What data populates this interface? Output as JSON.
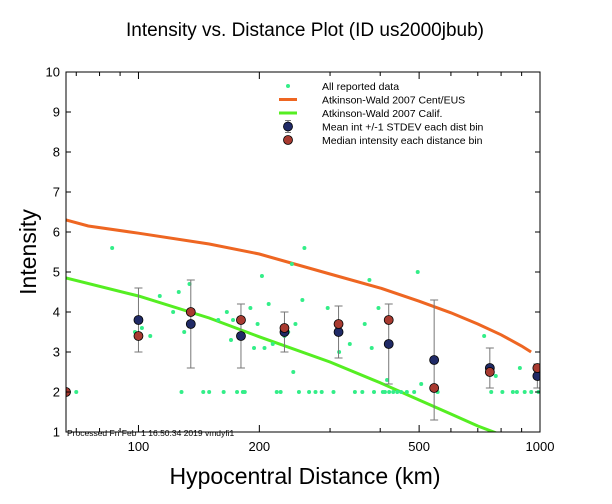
{
  "chart_data": {
    "type": "scatter",
    "title": "Intensity vs. Distance Plot (ID us2000jbub)",
    "xlabel": "Hypocentral Distance (km)",
    "ylabel": "Intensity",
    "x_scale": "log",
    "xlim": [
      66,
      1000
    ],
    "ylim": [
      1,
      10
    ],
    "x_ticks": [
      {
        "value": 100,
        "label": "100"
      },
      {
        "value": 200,
        "label": "200"
      },
      {
        "value": 500,
        "label": "500"
      },
      {
        "value": 1000,
        "label": "1000"
      }
    ],
    "y_ticks": [
      1,
      2,
      3,
      4,
      5,
      6,
      7,
      8,
      9,
      10
    ],
    "legend_position": "top-right",
    "footer": "Processed Fri Feb  1 16:50:34 2019 vmdyfi1",
    "colors": {
      "reported": "#33ee88",
      "cent_eus": "#ee6622",
      "calif": "#55ee22",
      "mean": "#202a66",
      "median": "#a83a30"
    },
    "series": [
      {
        "name": "All reported data",
        "kind": "points",
        "points": [
          [
            66,
            2
          ],
          [
            70,
            2
          ],
          [
            86,
            5.6
          ],
          [
            98,
            3.5
          ],
          [
            102,
            3.6
          ],
          [
            107,
            3.4
          ],
          [
            113,
            4.4
          ],
          [
            122,
            4.0
          ],
          [
            126,
            4.5
          ],
          [
            128,
            2
          ],
          [
            130,
            3.5
          ],
          [
            134,
            4.7
          ],
          [
            145,
            2
          ],
          [
            150,
            2
          ],
          [
            158,
            3.8
          ],
          [
            163,
            2
          ],
          [
            166,
            4.0
          ],
          [
            170,
            3.3
          ],
          [
            172,
            3.8
          ],
          [
            176,
            2
          ],
          [
            182,
            2
          ],
          [
            184,
            2
          ],
          [
            190,
            4.1
          ],
          [
            194,
            3.1
          ],
          [
            198,
            3.7
          ],
          [
            203,
            4.9
          ],
          [
            206,
            3.1
          ],
          [
            211,
            4.2
          ],
          [
            216,
            3.2
          ],
          [
            221,
            2
          ],
          [
            226,
            2
          ],
          [
            231,
            3.4
          ],
          [
            236,
            3.5
          ],
          [
            241,
            5.2
          ],
          [
            243,
            2.5
          ],
          [
            246,
            3.7
          ],
          [
            251,
            2
          ],
          [
            256,
            4.3
          ],
          [
            259,
            5.6
          ],
          [
            266,
            2
          ],
          [
            276,
            2
          ],
          [
            286,
            2
          ],
          [
            296,
            4.1
          ],
          [
            306,
            2
          ],
          [
            316,
            3.0
          ],
          [
            336,
            3.2
          ],
          [
            346,
            2
          ],
          [
            361,
            2
          ],
          [
            366,
            3.7
          ],
          [
            376,
            4.8
          ],
          [
            381,
            3.1
          ],
          [
            386,
            2
          ],
          [
            396,
            4.1
          ],
          [
            406,
            2
          ],
          [
            411,
            2
          ],
          [
            416,
            2.3
          ],
          [
            421,
            2
          ],
          [
            431,
            2
          ],
          [
            441,
            2
          ],
          [
            451,
            2
          ],
          [
            466,
            2
          ],
          [
            486,
            2
          ],
          [
            496,
            5.0
          ],
          [
            506,
            2.2
          ],
          [
            556,
            2.0
          ],
          [
            726,
            3.4
          ],
          [
            756,
            2
          ],
          [
            776,
            2.4
          ],
          [
            806,
            2
          ],
          [
            856,
            2
          ],
          [
            876,
            2
          ],
          [
            891,
            2.6
          ],
          [
            916,
            2
          ],
          [
            951,
            2
          ],
          [
            991,
            2
          ]
        ]
      },
      {
        "name": "Atkinson-Wald 2007 Cent/EUS",
        "kind": "line",
        "points": [
          [
            66,
            6.3
          ],
          [
            75,
            6.15
          ],
          [
            100,
            5.97
          ],
          [
            150,
            5.7
          ],
          [
            200,
            5.45
          ],
          [
            300,
            4.95
          ],
          [
            400,
            4.6
          ],
          [
            500,
            4.27
          ],
          [
            600,
            3.98
          ],
          [
            700,
            3.7
          ],
          [
            800,
            3.43
          ],
          [
            900,
            3.15
          ],
          [
            950,
            3.0
          ]
        ]
      },
      {
        "name": "Atkinson-Wald 2007 Calif.",
        "kind": "line",
        "points": [
          [
            66,
            4.85
          ],
          [
            100,
            4.4
          ],
          [
            150,
            3.85
          ],
          [
            200,
            3.38
          ],
          [
            300,
            2.75
          ],
          [
            400,
            2.23
          ],
          [
            500,
            1.8
          ],
          [
            600,
            1.45
          ],
          [
            700,
            1.15
          ],
          [
            780,
            0.97
          ]
        ]
      },
      {
        "name": "Mean int +/-1 STDEV each dist bin",
        "kind": "errorbar",
        "points": [
          {
            "x": 100,
            "y": 3.8,
            "err": 0.8
          },
          {
            "x": 135,
            "y": 3.7,
            "err": 1.1
          },
          {
            "x": 180,
            "y": 3.4,
            "err": 0.8
          },
          {
            "x": 231,
            "y": 3.5,
            "err": 0.5
          },
          {
            "x": 315,
            "y": 3.5,
            "err": 0.65
          },
          {
            "x": 420,
            "y": 3.2,
            "err": 1.0
          },
          {
            "x": 545,
            "y": 2.8,
            "err": 1.5
          },
          {
            "x": 750,
            "y": 2.6,
            "err": 0.5
          },
          {
            "x": 985,
            "y": 2.4,
            "err": 0.3
          }
        ]
      },
      {
        "name": "Median intensity each distance bin",
        "kind": "points",
        "points": [
          [
            66,
            2
          ],
          [
            100,
            3.4
          ],
          [
            135,
            4.0
          ],
          [
            180,
            3.8
          ],
          [
            231,
            3.6
          ],
          [
            315,
            3.7
          ],
          [
            420,
            3.8
          ],
          [
            545,
            2.1
          ],
          [
            750,
            2.5
          ],
          [
            985,
            2.6
          ]
        ]
      }
    ]
  }
}
